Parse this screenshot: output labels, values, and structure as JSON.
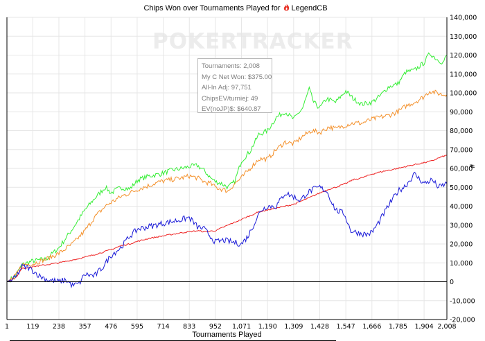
{
  "chart_data": {
    "type": "line",
    "title_prefix": "Chips Won over Tournaments Played for",
    "title_player": "LegendCB",
    "xlabel": "Tournaments Played",
    "ylabel_unit": "#",
    "watermark": "POKERTRACKER",
    "xlim": [
      1,
      2008
    ],
    "ylim": [
      -20000,
      140000
    ],
    "x_ticks": [
      "1",
      "119",
      "238",
      "357",
      "476",
      "595",
      "714",
      "833",
      "952",
      "1,071",
      "1,190",
      "1,309",
      "1,428",
      "1,547",
      "1,666",
      "1,785",
      "1,904",
      "2,008"
    ],
    "y_ticks": [
      "-20,000",
      "-10,000",
      "0",
      "10,000",
      "20,000",
      "30,000",
      "40,000",
      "50,000",
      "60,000",
      "70,000",
      "80,000",
      "90,000",
      "100,000",
      "110,000",
      "120,000",
      "130,000",
      "140,000"
    ],
    "stats": [
      "Tournaments: 2,008",
      "My C Net Won: $375.00",
      "All-In Adj: 97,751",
      "ChipsEV/turniej: 49",
      "EV(noJP)$: $640.87"
    ],
    "colors": {
      "green": "#33ee33",
      "orange": "#f4902a",
      "red": "#ee2020",
      "blue": "#1a1ad8",
      "grid": "#e6e6e6",
      "zero": "#000000",
      "icon": "#e8352a"
    },
    "series": [
      {
        "color": "green",
        "points": [
          [
            1,
            0
          ],
          [
            40,
            3000
          ],
          [
            70,
            9000
          ],
          [
            119,
            11000
          ],
          [
            180,
            12000
          ],
          [
            238,
            18000
          ],
          [
            300,
            28000
          ],
          [
            357,
            38000
          ],
          [
            400,
            44000
          ],
          [
            450,
            50000
          ],
          [
            476,
            47000
          ],
          [
            520,
            50000
          ],
          [
            560,
            49000
          ],
          [
            600,
            54000
          ],
          [
            650,
            56000
          ],
          [
            700,
            57000
          ],
          [
            750,
            59000
          ],
          [
            800,
            60000
          ],
          [
            833,
            61000
          ],
          [
            870,
            61500
          ],
          [
            900,
            59000
          ],
          [
            930,
            55000
          ],
          [
            952,
            53000
          ],
          [
            980,
            52000
          ],
          [
            1010,
            50000
          ],
          [
            1040,
            53000
          ],
          [
            1071,
            64000
          ],
          [
            1110,
            69000
          ],
          [
            1150,
            78000
          ],
          [
            1190,
            80000
          ],
          [
            1230,
            87000
          ],
          [
            1270,
            90000
          ],
          [
            1309,
            86000
          ],
          [
            1350,
            92000
          ],
          [
            1380,
            102000
          ],
          [
            1400,
            95000
          ],
          [
            1428,
            92000
          ],
          [
            1460,
            97000
          ],
          [
            1500,
            95000
          ],
          [
            1547,
            101000
          ],
          [
            1580,
            97000
          ],
          [
            1620,
            94000
          ],
          [
            1666,
            95000
          ],
          [
            1700,
            98000
          ],
          [
            1740,
            103000
          ],
          [
            1785,
            105000
          ],
          [
            1820,
            111000
          ],
          [
            1860,
            112000
          ],
          [
            1904,
            116000
          ],
          [
            1930,
            121000
          ],
          [
            1960,
            118000
          ],
          [
            1990,
            116000
          ],
          [
            2008,
            120000
          ]
        ]
      },
      {
        "color": "orange",
        "points": [
          [
            1,
            0
          ],
          [
            40,
            3000
          ],
          [
            70,
            9000
          ],
          [
            119,
            9500
          ],
          [
            180,
            12000
          ],
          [
            238,
            15000
          ],
          [
            300,
            20000
          ],
          [
            357,
            27000
          ],
          [
            400,
            34000
          ],
          [
            450,
            40000
          ],
          [
            476,
            42000
          ],
          [
            520,
            45000
          ],
          [
            560,
            47000
          ],
          [
            600,
            49000
          ],
          [
            650,
            51000
          ],
          [
            700,
            53000
          ],
          [
            750,
            54000
          ],
          [
            800,
            55000
          ],
          [
            833,
            56000
          ],
          [
            870,
            55000
          ],
          [
            900,
            53000
          ],
          [
            930,
            52000
          ],
          [
            952,
            50000
          ],
          [
            980,
            49000
          ],
          [
            1010,
            48000
          ],
          [
            1040,
            52000
          ],
          [
            1071,
            55000
          ],
          [
            1110,
            60000
          ],
          [
            1150,
            65000
          ],
          [
            1190,
            65000
          ],
          [
            1230,
            70000
          ],
          [
            1270,
            74000
          ],
          [
            1309,
            73000
          ],
          [
            1350,
            77000
          ],
          [
            1390,
            80000
          ],
          [
            1428,
            79000
          ],
          [
            1470,
            82000
          ],
          [
            1500,
            81000
          ],
          [
            1547,
            83000
          ],
          [
            1580,
            84000
          ],
          [
            1620,
            84000
          ],
          [
            1666,
            86000
          ],
          [
            1700,
            87000
          ],
          [
            1740,
            88000
          ],
          [
            1785,
            90000
          ],
          [
            1820,
            93000
          ],
          [
            1860,
            95000
          ],
          [
            1904,
            98000
          ],
          [
            1930,
            101000
          ],
          [
            1960,
            100000
          ],
          [
            1990,
            99000
          ],
          [
            2008,
            99000
          ]
        ]
      },
      {
        "color": "red",
        "points": [
          [
            1,
            0
          ],
          [
            40,
            2000
          ],
          [
            70,
            7000
          ],
          [
            119,
            8000
          ],
          [
            180,
            9000
          ],
          [
            238,
            10000
          ],
          [
            300,
            11500
          ],
          [
            357,
            13000
          ],
          [
            420,
            15000
          ],
          [
            476,
            17000
          ],
          [
            520,
            19000
          ],
          [
            560,
            20000
          ],
          [
            600,
            21500
          ],
          [
            650,
            23000
          ],
          [
            700,
            24000
          ],
          [
            750,
            25000
          ],
          [
            800,
            26000
          ],
          [
            833,
            26500
          ],
          [
            870,
            27000
          ],
          [
            900,
            26500
          ],
          [
            952,
            27000
          ],
          [
            1010,
            30000
          ],
          [
            1071,
            33000
          ],
          [
            1110,
            35000
          ],
          [
            1150,
            37000
          ],
          [
            1190,
            38000
          ],
          [
            1230,
            39000
          ],
          [
            1270,
            40000
          ],
          [
            1309,
            41000
          ],
          [
            1350,
            43000
          ],
          [
            1390,
            45000
          ],
          [
            1428,
            47000
          ],
          [
            1470,
            49000
          ],
          [
            1500,
            50000
          ],
          [
            1547,
            52000
          ],
          [
            1580,
            54000
          ],
          [
            1620,
            55000
          ],
          [
            1666,
            57000
          ],
          [
            1700,
            58000
          ],
          [
            1740,
            59000
          ],
          [
            1785,
            60000
          ],
          [
            1820,
            61000
          ],
          [
            1860,
            62000
          ],
          [
            1904,
            63000
          ],
          [
            1940,
            64000
          ],
          [
            1980,
            66000
          ],
          [
            2008,
            67000
          ]
        ]
      },
      {
        "color": "blue",
        "points": [
          [
            1,
            0
          ],
          [
            40,
            2000
          ],
          [
            70,
            8000
          ],
          [
            100,
            7500
          ],
          [
            119,
            6000
          ],
          [
            150,
            3000
          ],
          [
            190,
            1000
          ],
          [
            238,
            0
          ],
          [
            270,
            1000
          ],
          [
            300,
            -2000
          ],
          [
            330,
            -1000
          ],
          [
            357,
            4000
          ],
          [
            400,
            3000
          ],
          [
            440,
            8000
          ],
          [
            476,
            14000
          ],
          [
            520,
            18000
          ],
          [
            560,
            24000
          ],
          [
            600,
            28000
          ],
          [
            640,
            29000
          ],
          [
            680,
            30000
          ],
          [
            714,
            31000
          ],
          [
            760,
            32000
          ],
          [
            800,
            33000
          ],
          [
            833,
            34000
          ],
          [
            870,
            29000
          ],
          [
            900,
            28000
          ],
          [
            930,
            24000
          ],
          [
            952,
            21000
          ],
          [
            990,
            22000
          ],
          [
            1030,
            21000
          ],
          [
            1071,
            20000
          ],
          [
            1100,
            24000
          ],
          [
            1130,
            31000
          ],
          [
            1160,
            38000
          ],
          [
            1190,
            40000
          ],
          [
            1230,
            40000
          ],
          [
            1270,
            47000
          ],
          [
            1309,
            45000
          ],
          [
            1340,
            43000
          ],
          [
            1370,
            47000
          ],
          [
            1400,
            49000
          ],
          [
            1428,
            50000
          ],
          [
            1460,
            48000
          ],
          [
            1500,
            38000
          ],
          [
            1540,
            36000
          ],
          [
            1570,
            27000
          ],
          [
            1600,
            26000
          ],
          [
            1640,
            25000
          ],
          [
            1666,
            26000
          ],
          [
            1700,
            32000
          ],
          [
            1740,
            40000
          ],
          [
            1785,
            48000
          ],
          [
            1820,
            51000
          ],
          [
            1860,
            57000
          ],
          [
            1904,
            52000
          ],
          [
            1940,
            54000
          ],
          [
            1970,
            50000
          ],
          [
            2008,
            52000
          ]
        ]
      }
    ]
  }
}
